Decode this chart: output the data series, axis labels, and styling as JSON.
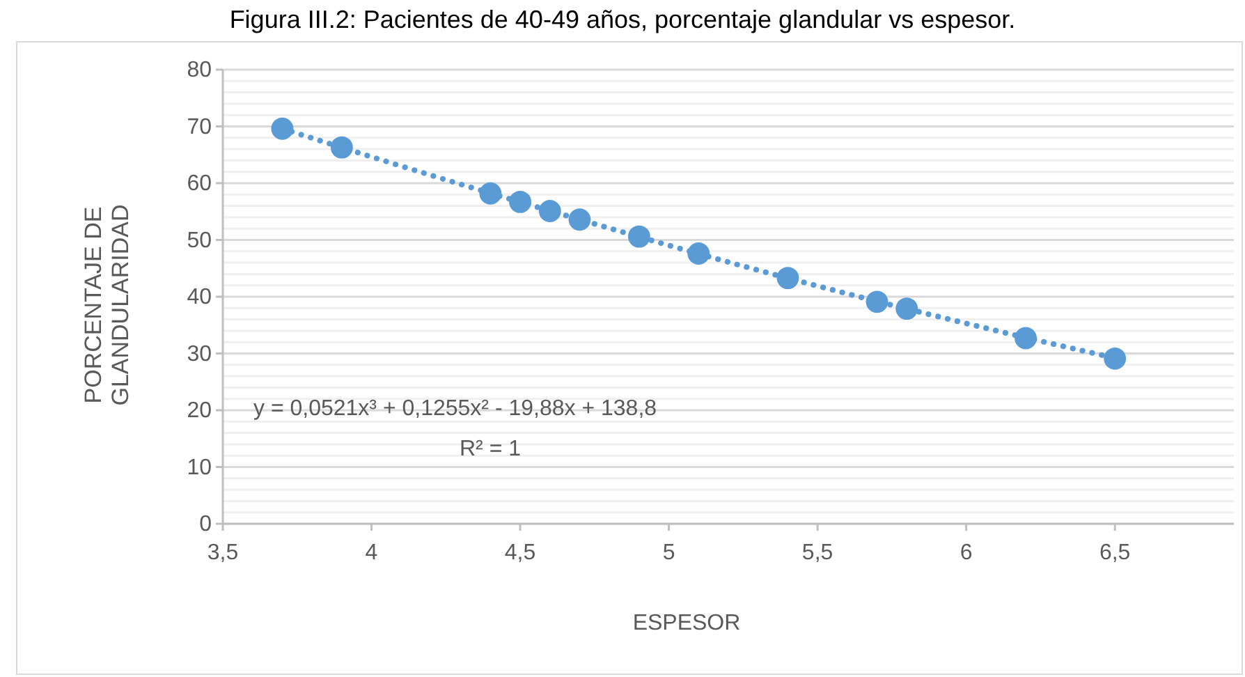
{
  "chart_data": {
    "type": "scatter",
    "title": "Figura III.2: Pacientes de 40-49 años, porcentaje glandular vs espesor.",
    "xlabel": "ESPESOR",
    "ylabel": "PORCENTAJE DE GLANDULARIDAD",
    "annotations": [
      "y = 0,0521x³ + 0,1255x² - 19,88x + 138,8",
      "R² = 1"
    ],
    "marker": "circle",
    "grid": "y",
    "series": [
      {
        "color": "#5b9bd5",
        "x": [
          3.7,
          3.9,
          4.4,
          4.5,
          4.6,
          4.7,
          4.9,
          5.1,
          5.4,
          5.7,
          5.8,
          6.2,
          6.5
        ],
        "values": [
          69.6,
          66.3,
          58.2,
          56.7,
          55.1,
          53.6,
          50.6,
          47.6,
          43.3,
          39.1,
          37.9,
          32.7,
          29.1
        ]
      },
      {
        "type": "line",
        "line_style": "dotted",
        "marker": "none",
        "color": "#5b9bd5",
        "x": [
          3.7,
          4.2,
          4.7,
          5.2,
          5.7,
          6.2,
          6.5
        ],
        "values": [
          69.6,
          61.4,
          53.6,
          46.1,
          39.2,
          32.8,
          29.2
        ]
      }
    ],
    "xlim": [
      3.5,
      6.9
    ],
    "xticks": [
      {
        "value": 3.5,
        "label": "3,5"
      },
      4,
      {
        "value": 4.5,
        "label": "4,5"
      },
      5,
      {
        "value": 5.5,
        "label": "5,5"
      },
      6,
      {
        "value": 6.5,
        "label": "6,5"
      }
    ],
    "ylim": [
      0,
      80
    ],
    "yticks": [
      0,
      {
        "value": 2,
        "label": null
      },
      {
        "value": 4,
        "label": null
      },
      {
        "value": 6,
        "label": null
      },
      {
        "value": 8,
        "label": null
      },
      10,
      {
        "value": 12,
        "label": null
      },
      {
        "value": 14,
        "label": null
      },
      {
        "value": 16,
        "label": null
      },
      {
        "value": 18,
        "label": null
      },
      20,
      {
        "value": 22,
        "label": null
      },
      {
        "value": 24,
        "label": null
      },
      {
        "value": 26,
        "label": null
      },
      {
        "value": 28,
        "label": null
      },
      30,
      {
        "value": 32,
        "label": null
      },
      {
        "value": 34,
        "label": null
      },
      {
        "value": 36,
        "label": null
      },
      {
        "value": 38,
        "label": null
      },
      40,
      {
        "value": 42,
        "label": null
      },
      {
        "value": 44,
        "label": null
      },
      {
        "value": 46,
        "label": null
      },
      {
        "value": 48,
        "label": null
      },
      50,
      {
        "value": 52,
        "label": null
      },
      {
        "value": 54,
        "label": null
      },
      {
        "value": 56,
        "label": null
      },
      {
        "value": 58,
        "label": null
      },
      60,
      {
        "value": 62,
        "label": null
      },
      {
        "value": 64,
        "label": null
      },
      {
        "value": 66,
        "label": null
      },
      {
        "value": 68,
        "label": null
      },
      70,
      {
        "value": 72,
        "label": null
      },
      {
        "value": 74,
        "label": null
      },
      {
        "value": 76,
        "label": null
      },
      {
        "value": 78,
        "label": null
      },
      80
    ]
  }
}
